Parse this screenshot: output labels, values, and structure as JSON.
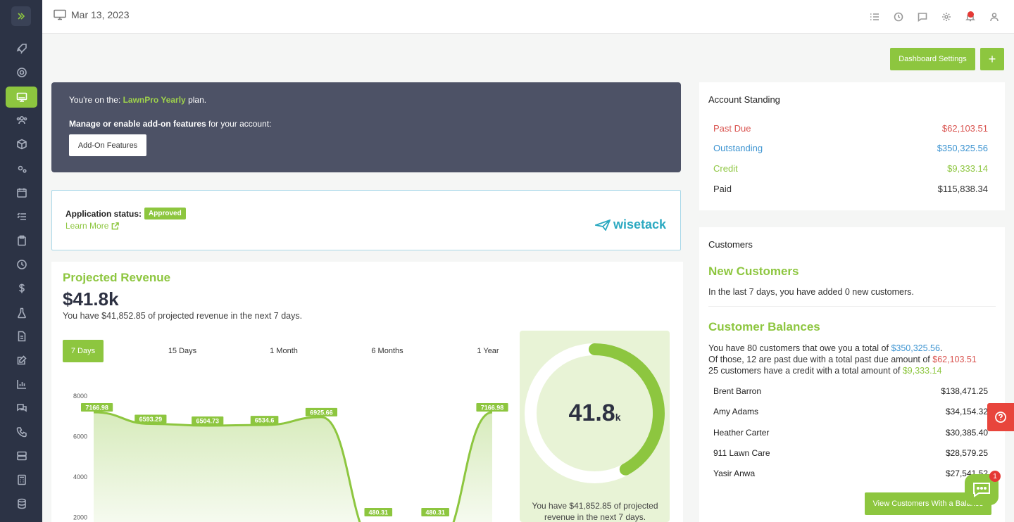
{
  "header": {
    "date": "Mar 13, 2023"
  },
  "toolbar": {
    "dashboard_settings": "Dashboard Settings",
    "add_label": "+"
  },
  "plan": {
    "prefix": "You're on the: ",
    "name": "LawnPro Yearly",
    "suffix": " plan.",
    "manage_bold": "Manage or enable add-on features",
    "manage_rest": " for your account:",
    "addon_button": "Add-On Features"
  },
  "application": {
    "status_label": "Application status:",
    "status_badge": "Approved",
    "learn_more": "Learn More",
    "partner": "wisetack"
  },
  "revenue": {
    "title": "Projected Revenue",
    "big_value": "$41.8k",
    "subtitle": "You have $41,852.85 of projected revenue in the next 7 days.",
    "tabs": [
      "7 Days",
      "15 Days",
      "1 Month",
      "6 Months",
      "1 Year"
    ],
    "gauge_value": "41.8",
    "gauge_unit": "k",
    "gauge_fraction": 0.42,
    "gauge_text": "You have $41,852.85 of projected revenue in the next 7 days."
  },
  "chart_data": {
    "type": "area",
    "x": [
      "1",
      "2",
      "3",
      "4",
      "5",
      "6",
      "7",
      "8"
    ],
    "values": [
      7166.98,
      6593.29,
      6504.73,
      6534.6,
      6925.66,
      480.31,
      480.31,
      7166.98
    ],
    "data_labels": [
      "7166.98",
      "6593.29",
      "6504.73",
      "6534.6",
      "6925.66",
      "480.31",
      "480.31",
      "7166.98"
    ],
    "y_ticks": [
      "8000",
      "6000",
      "4000",
      "2000"
    ],
    "ylim": [
      0,
      8000
    ],
    "color": "#8dc63f"
  },
  "standing": {
    "title": "Account Standing",
    "rows": [
      {
        "label": "Past Due",
        "value": "$62,103.51",
        "color": "#d9534f"
      },
      {
        "label": "Outstanding",
        "value": "$350,325.56",
        "color": "#3d94d1"
      },
      {
        "label": "Credit",
        "value": "$9,333.14",
        "color": "#8dc63f"
      },
      {
        "label": "Paid",
        "value": "$115,838.34",
        "color": "#333333"
      }
    ]
  },
  "customers": {
    "title": "Customers",
    "new_title": "New Customers",
    "new_text": "In the last 7 days, you have added 0 new customers.",
    "bal_title": "Customer Balances",
    "line1_a": "You have 80 customers that owe you a total of ",
    "line1_b": "$350,325.56",
    "line1_c": ".",
    "line2_a": "Of those, 12 are past due with a total past due amount of ",
    "line2_b": "$62,103.51",
    "line3_a": "25 customers have a credit with a total amount of ",
    "line3_b": "$9,333.14",
    "balances": [
      {
        "name": "Brent Barron",
        "amount": "$138,471.25"
      },
      {
        "name": "Amy Adams",
        "amount": "$34,154.32"
      },
      {
        "name": "Heather Carter",
        "amount": "$30,385.40"
      },
      {
        "name": "911 Lawn Care",
        "amount": "$28,579.25"
      },
      {
        "name": "Yasir Anwa",
        "amount": "$27,541.52"
      }
    ],
    "view_button": "View Customers With a Balance"
  },
  "chat": {
    "badge": "1"
  },
  "colors": {
    "accent": "#8dc63f",
    "sidebar": "#2c3345",
    "plan_bg": "#4d5266"
  }
}
